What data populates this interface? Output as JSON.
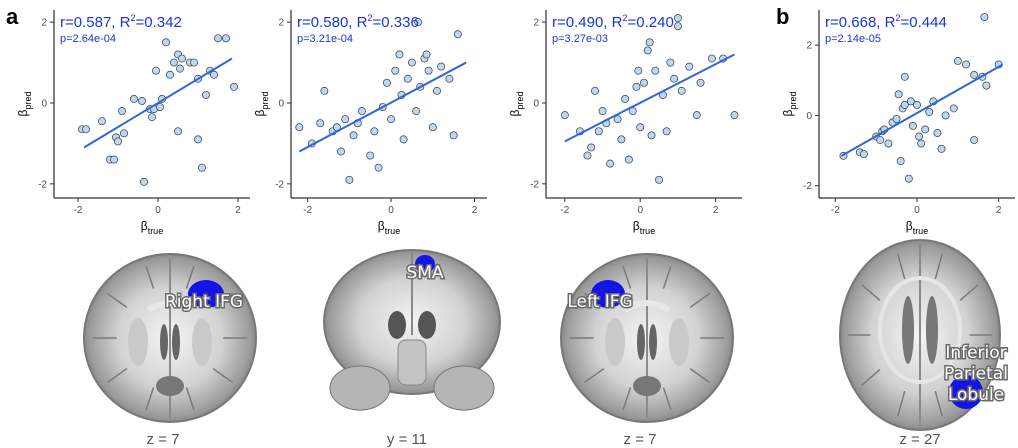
{
  "panel_labels": [
    "a",
    "b"
  ],
  "chart_data": [
    {
      "type": "scatter",
      "r": "r=0.587",
      "r2": "R",
      "r2_value": "=0.342",
      "p": "p=2.64e-04",
      "xlabel": "β",
      "xlabel_sub": "true",
      "ylabel": "β",
      "ylabel_sub": "pred",
      "xlim": [
        -2.6,
        2.3
      ],
      "ylim": [
        -2.35,
        2.3
      ],
      "xticks": [
        -2,
        0,
        2
      ],
      "yticks": [
        -2,
        0,
        2
      ],
      "fit": {
        "x": [
          -1.85,
          1.85
        ],
        "y": [
          -1.1,
          1.1
        ]
      },
      "points": [
        [
          -1.9,
          -0.65
        ],
        [
          -1.8,
          -0.65
        ],
        [
          -1.4,
          -0.45
        ],
        [
          -1.2,
          -1.4
        ],
        [
          -1.1,
          -1.4
        ],
        [
          -1.05,
          -0.85
        ],
        [
          -1.0,
          -0.95
        ],
        [
          -0.9,
          -0.2
        ],
        [
          -0.85,
          -0.75
        ],
        [
          -0.6,
          0.1
        ],
        [
          -0.4,
          0.05
        ],
        [
          -0.35,
          -1.95
        ],
        [
          -0.2,
          -0.15
        ],
        [
          -0.15,
          -0.35
        ],
        [
          -0.1,
          -0.15
        ],
        [
          -0.05,
          0.8
        ],
        [
          0.05,
          -0.1
        ],
        [
          0.1,
          0.1
        ],
        [
          0.2,
          1.5
        ],
        [
          0.3,
          0.7
        ],
        [
          0.4,
          1.0
        ],
        [
          0.5,
          1.2
        ],
        [
          0.5,
          -0.7
        ],
        [
          0.55,
          0.85
        ],
        [
          0.6,
          1.1
        ],
        [
          0.8,
          1.0
        ],
        [
          0.9,
          1.0
        ],
        [
          1.0,
          -0.9
        ],
        [
          1.0,
          0.6
        ],
        [
          1.1,
          -1.6
        ],
        [
          1.2,
          0.2
        ],
        [
          1.3,
          0.8
        ],
        [
          1.4,
          0.7
        ],
        [
          1.5,
          1.6
        ],
        [
          1.7,
          1.6
        ],
        [
          1.9,
          0.4
        ]
      ]
    },
    {
      "type": "scatter",
      "r": "r=0.580",
      "r2": "R",
      "r2_value": "=0.336",
      "p": "p=3.21e-04",
      "xlabel": "β",
      "xlabel_sub": "true",
      "ylabel": "β",
      "ylabel_sub": "pred",
      "xlim": [
        -2.4,
        2.3
      ],
      "ylim": [
        -2.35,
        2.3
      ],
      "xticks": [
        -2,
        0,
        2
      ],
      "yticks": [
        -2,
        0,
        2
      ],
      "fit": {
        "x": [
          -2.2,
          1.8
        ],
        "y": [
          -1.2,
          1.0
        ]
      },
      "points": [
        [
          -2.2,
          -0.6
        ],
        [
          -1.9,
          -1.0
        ],
        [
          -1.7,
          -0.5
        ],
        [
          -1.6,
          0.3
        ],
        [
          -1.4,
          -0.7
        ],
        [
          -1.3,
          -0.6
        ],
        [
          -1.2,
          -1.2
        ],
        [
          -1.1,
          -0.4
        ],
        [
          -1.0,
          -1.9
        ],
        [
          -0.9,
          -0.8
        ],
        [
          -0.8,
          -0.5
        ],
        [
          -0.7,
          -0.2
        ],
        [
          -0.5,
          -1.3
        ],
        [
          -0.3,
          -1.6
        ],
        [
          -0.2,
          -0.1
        ],
        [
          -0.1,
          0.5
        ],
        [
          0.0,
          -0.4
        ],
        [
          0.1,
          0.8
        ],
        [
          0.2,
          1.2
        ],
        [
          0.3,
          -0.9
        ],
        [
          0.4,
          0.6
        ],
        [
          0.5,
          1.0
        ],
        [
          0.6,
          -0.2
        ],
        [
          0.7,
          0.4
        ],
        [
          0.8,
          1.1
        ],
        [
          0.9,
          0.8
        ],
        [
          1.0,
          -0.6
        ],
        [
          1.1,
          0.3
        ],
        [
          1.2,
          0.9
        ],
        [
          1.4,
          0.6
        ],
        [
          0.65,
          2.0
        ],
        [
          1.6,
          1.7
        ],
        [
          0.85,
          1.2
        ],
        [
          -0.4,
          -0.7
        ],
        [
          0.25,
          0.2
        ],
        [
          1.5,
          -0.8
        ]
      ]
    },
    {
      "type": "scatter",
      "r": "r=0.490",
      "r2": "R",
      "r2_value": "=0.240",
      "p": "p=3.27e-03",
      "xlabel": "β",
      "xlabel_sub": "true",
      "ylabel": "β",
      "ylabel_sub": "pred",
      "xlim": [
        -2.5,
        2.7
      ],
      "ylim": [
        -2.35,
        2.3
      ],
      "xticks": [
        -2,
        0,
        2
      ],
      "yticks": [
        -2,
        0,
        2
      ],
      "fit": {
        "x": [
          -2.0,
          2.5
        ],
        "y": [
          -0.95,
          1.2
        ]
      },
      "points": [
        [
          -2.0,
          -0.3
        ],
        [
          -1.6,
          -0.7
        ],
        [
          -1.4,
          -1.3
        ],
        [
          -1.3,
          -1.1
        ],
        [
          -1.2,
          0.3
        ],
        [
          -1.1,
          -0.7
        ],
        [
          -1.0,
          -0.2
        ],
        [
          -0.9,
          -0.5
        ],
        [
          -0.8,
          -1.5
        ],
        [
          -0.6,
          -0.4
        ],
        [
          -0.5,
          -0.9
        ],
        [
          -0.4,
          0.1
        ],
        [
          -0.3,
          -1.4
        ],
        [
          -0.2,
          -0.2
        ],
        [
          -0.1,
          0.4
        ],
        [
          0.0,
          -0.6
        ],
        [
          0.1,
          0.5
        ],
        [
          0.2,
          1.3
        ],
        [
          0.3,
          -0.8
        ],
        [
          0.4,
          0.8
        ],
        [
          0.5,
          -1.9
        ],
        [
          0.6,
          0.2
        ],
        [
          0.7,
          -0.7
        ],
        [
          0.8,
          1.0
        ],
        [
          0.9,
          0.6
        ],
        [
          1.0,
          1.9
        ],
        [
          1.0,
          2.1
        ],
        [
          1.1,
          0.3
        ],
        [
          1.3,
          0.9
        ],
        [
          1.5,
          -0.3
        ],
        [
          1.6,
          0.5
        ],
        [
          1.9,
          1.1
        ],
        [
          2.2,
          1.1
        ],
        [
          2.5,
          -0.3
        ],
        [
          -0.05,
          0.8
        ],
        [
          0.25,
          1.5
        ]
      ]
    },
    {
      "type": "scatter",
      "r": "r=0.668",
      "r2": "R",
      "r2_value": "=0.444",
      "p": "p=2.14e-05",
      "xlabel": "β",
      "xlabel_sub": "true",
      "ylabel": "β",
      "ylabel_sub": "pred",
      "xlim": [
        -2.4,
        2.4
      ],
      "ylim": [
        -2.35,
        3.0
      ],
      "xticks": [
        -2,
        0,
        2
      ],
      "yticks": [
        -2,
        0,
        2
      ],
      "fit": {
        "x": [
          -1.85,
          2.1
        ],
        "y": [
          -1.15,
          1.45
        ]
      },
      "points": [
        [
          -1.8,
          -1.15
        ],
        [
          -1.4,
          -1.05
        ],
        [
          -1.3,
          -1.1
        ],
        [
          -1.0,
          -0.6
        ],
        [
          -0.9,
          -0.7
        ],
        [
          -0.85,
          -0.45
        ],
        [
          -0.8,
          -0.4
        ],
        [
          -0.7,
          -0.8
        ],
        [
          -0.6,
          -0.2
        ],
        [
          -0.5,
          -0.1
        ],
        [
          -0.4,
          -1.3
        ],
        [
          -0.35,
          0.2
        ],
        [
          -0.3,
          0.3
        ],
        [
          -0.2,
          -1.8
        ],
        [
          -0.15,
          0.4
        ],
        [
          -0.1,
          -0.3
        ],
        [
          0.0,
          0.3
        ],
        [
          0.05,
          -0.6
        ],
        [
          0.1,
          -0.8
        ],
        [
          0.2,
          -0.4
        ],
        [
          0.3,
          0.1
        ],
        [
          0.4,
          0.4
        ],
        [
          0.5,
          -0.5
        ],
        [
          0.6,
          -0.95
        ],
        [
          0.7,
          0.0
        ],
        [
          0.9,
          0.2
        ],
        [
          1.0,
          1.55
        ],
        [
          1.2,
          1.45
        ],
        [
          1.4,
          -0.7
        ],
        [
          1.4,
          1.15
        ],
        [
          1.6,
          1.1
        ],
        [
          1.65,
          2.8
        ],
        [
          1.7,
          0.85
        ],
        [
          2.0,
          1.45
        ],
        [
          -0.3,
          1.1
        ],
        [
          -0.45,
          0.6
        ]
      ]
    }
  ],
  "brains": [
    {
      "label_lines": [
        "Right IFG"
      ],
      "slice": "z = 7"
    },
    {
      "label_lines": [
        "SMA"
      ],
      "slice": "y = 11"
    },
    {
      "label_lines": [
        "Left IFG"
      ],
      "slice": "z = 7"
    },
    {
      "label_lines": [
        "Inferior",
        "Parietal",
        "Lobule"
      ],
      "slice": "z = 27"
    }
  ],
  "colors": {
    "point_fill": "#bcd7f2",
    "point_stroke": "#3a3a3a",
    "fit_line": "#2f66d9",
    "stat_text": "#1d34d8",
    "roi": "#1414e6",
    "brain_gray": "#9a9a9a"
  }
}
